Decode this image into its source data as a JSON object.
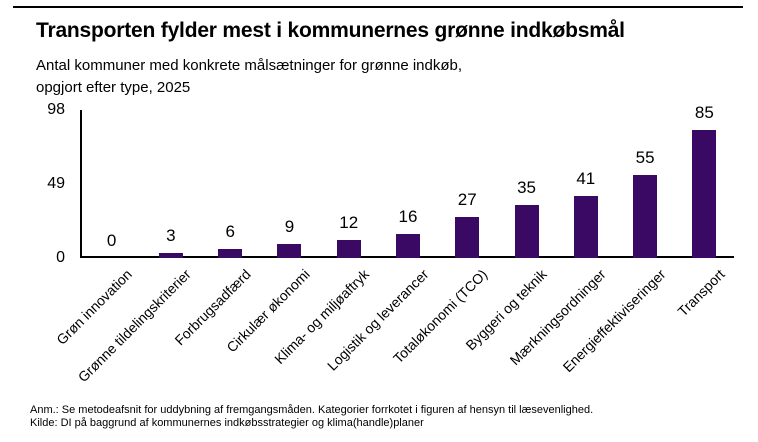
{
  "header": {
    "title": "Transporten fylder mest i kommunernes grønne indkøbsmål",
    "subtitle_line1": "Antal kommuner med konkrete målsætninger for grønne indkøb,",
    "subtitle_line2": "opgjort efter type, 2025"
  },
  "chart_data": {
    "type": "bar",
    "title": "Transporten fylder mest i kommunernes grønne indkøbsmål",
    "subtitle": "Antal kommuner med konkrete målsætninger for grønne indkøb, opgjort efter type, 2025",
    "categories": [
      "Grøn innovation",
      "Grønne tildelingskriterier",
      "Forbrugsadfærd",
      "Cirkulær økonomi",
      "Klima- og miljøaftryk",
      "Logistik og leverancer",
      "Totaløkonomi (TCO)",
      "Byggeri og teknik",
      "Mærkningsordninger",
      "Energieffektiviseringer",
      "Transport"
    ],
    "values": [
      0,
      3,
      6,
      9,
      12,
      16,
      27,
      35,
      41,
      55,
      85
    ],
    "xlabel": "",
    "ylabel": "",
    "ylim": [
      0,
      98
    ],
    "yticks": [
      0,
      49,
      98
    ],
    "bar_color": "#3a0963",
    "axis_color": "#000000",
    "grid": false,
    "data_labels": true,
    "legend": "none",
    "x_label_rotation_deg": 45
  },
  "footer": {
    "note": "Anm.: Se metodeafsnit for uddybning af fremgangsmåden. Kategorier forrkotet i figuren af hensyn til læsevenlighed.",
    "source": "Kilde: DI på baggrund af kommunernes indkøbsstrategier og klima(handle)planer"
  }
}
